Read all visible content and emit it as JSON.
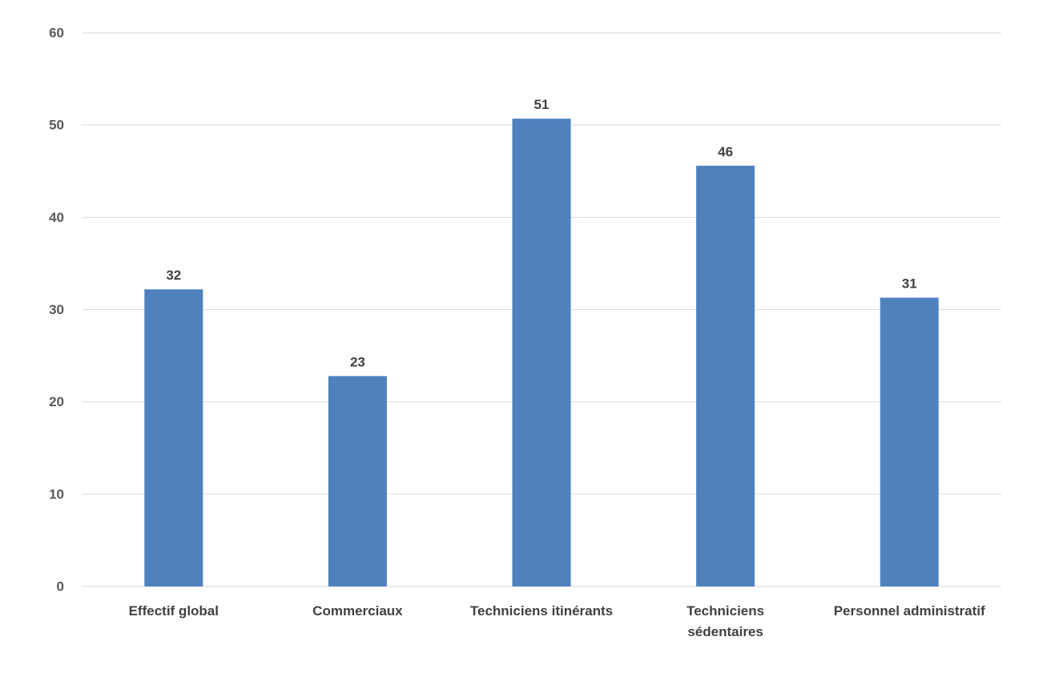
{
  "chart_data": {
    "type": "bar",
    "title": "",
    "xlabel": "",
    "ylabel": "",
    "categories": [
      [
        "Effectif global"
      ],
      [
        "Commerciaux"
      ],
      [
        "Techniciens itinérants"
      ],
      [
        "Techniciens",
        "sédentaires"
      ],
      [
        "Personnel administratif"
      ]
    ],
    "series": [
      {
        "values": [
          32.2,
          22.8,
          50.7,
          45.6,
          31.3
        ],
        "labels": [
          "32",
          "23",
          "51",
          "46",
          "31"
        ]
      }
    ],
    "ylim": [
      0,
      60
    ],
    "yticks": [
      0,
      10,
      20,
      30,
      40,
      50,
      60
    ],
    "grid": true,
    "legend": "none",
    "colors": {
      "bar": "#4f81bd",
      "grid": "#d9d9d9",
      "tick_text": "#595959",
      "label_text": "#404040"
    }
  }
}
